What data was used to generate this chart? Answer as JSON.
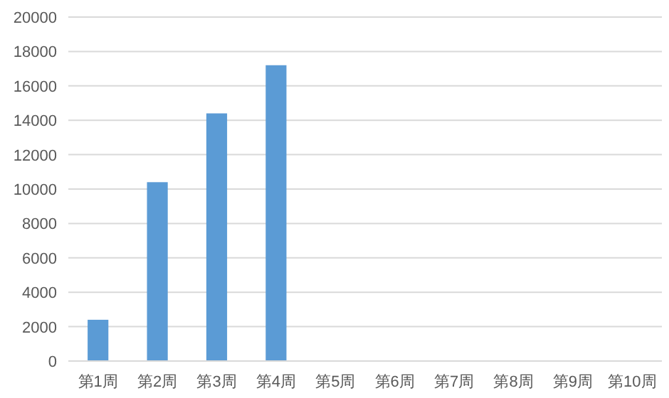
{
  "chart_data": {
    "type": "bar",
    "categories": [
      "第1周",
      "第2周",
      "第3周",
      "第4周",
      "第5周",
      "第6周",
      "第7周",
      "第8周",
      "第9周",
      "第10周"
    ],
    "values": [
      2400,
      10400,
      14400,
      17200,
      null,
      null,
      null,
      null,
      null,
      null
    ],
    "color": "#5b9bd5",
    "ylim": [
      0,
      20000
    ],
    "yticks": [
      0,
      2000,
      4000,
      6000,
      8000,
      10000,
      12000,
      14000,
      16000,
      18000,
      20000
    ],
    "grid": "y"
  }
}
